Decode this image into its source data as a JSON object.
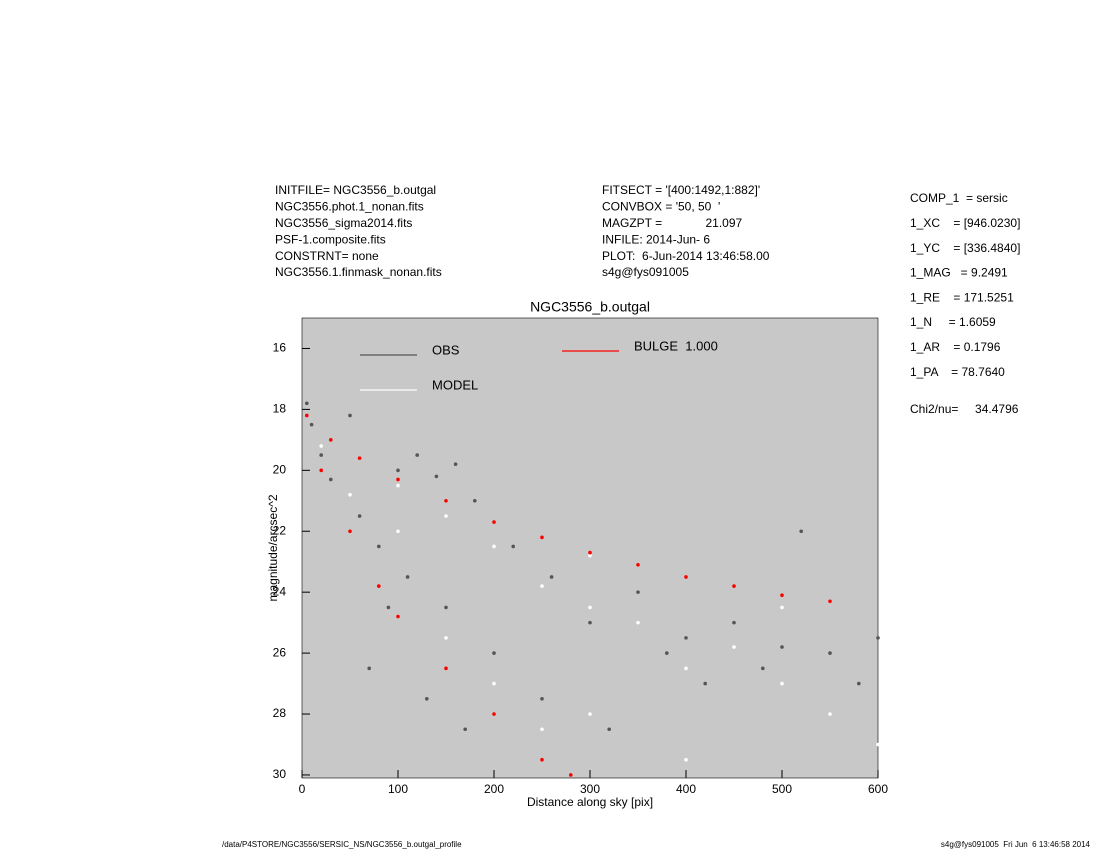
{
  "header": {
    "left": [
      "INITFILE= NGC3556_b.outgal",
      "NGC3556.phot.1_nonan.fits",
      "NGC3556_sigma2014.fits",
      "PSF-1.composite.fits",
      "CONSTRNT= none",
      "NGC3556.1.finmask_nonan.fits"
    ],
    "middle": [
      "FITSECT = '[400:1492,1:882]'",
      "CONVBOX = '50, 50  '",
      "MAGZPT =             21.097",
      "INFILE: 2014-Jun- 6",
      "PLOT:  6-Jun-2014 13:46:58.00",
      "s4g@fys091005"
    ],
    "right": [
      "COMP_1  = sersic",
      "1_XC    = [946.0230]",
      "1_YC    = [336.4840]",
      "1_MAG   = 9.2491",
      "1_RE    = 171.5251",
      "1_N     = 1.6059",
      "1_AR    = 0.1796",
      "1_PA    = 78.7640"
    ],
    "chi2": "Chi2/nu=     34.4796"
  },
  "footer": {
    "left": "/data/P4STORE/NGC3556/SERSIC_NS/NGC3556_b.outgal_profile",
    "right": "s4g@fys091005  Fri Jun  6 13:46:58 2014"
  },
  "chart_data": {
    "type": "scatter",
    "title": "NGC3556_b.outgal",
    "x_label": "Distance along sky [pix]",
    "y_label": "magnitude/arcsec^2",
    "xlim": [
      0,
      600
    ],
    "ylim": [
      30.1,
      15
    ],
    "xticks": [
      0,
      100,
      200,
      300,
      400,
      500,
      600
    ],
    "yticks": [
      16,
      18,
      20,
      22,
      24,
      26,
      28,
      30
    ],
    "series": [
      {
        "name": "OBS",
        "color": "#555555",
        "x": [
          5,
          10,
          20,
          30,
          50,
          60,
          80,
          100,
          110,
          120,
          140,
          150,
          160,
          180,
          200,
          220,
          250,
          260,
          300,
          320,
          350,
          380,
          400,
          420,
          450,
          480,
          500,
          520,
          550,
          580,
          600,
          130,
          170,
          90,
          70
        ],
        "values": [
          17.8,
          18.5,
          19.5,
          20.3,
          18.2,
          21.5,
          22.5,
          20.0,
          23.5,
          19.5,
          20.2,
          24.5,
          19.8,
          21.0,
          26.0,
          22.5,
          27.5,
          23.5,
          25.0,
          28.5,
          24.0,
          26.0,
          25.5,
          27.0,
          25.0,
          26.5,
          25.8,
          22.0,
          26.0,
          27.0,
          25.5,
          27.5,
          28.5,
          24.5,
          26.5
        ]
      },
      {
        "name": "MODEL",
        "color": "#ffffff",
        "x": [
          20,
          50,
          100,
          150,
          200,
          250,
          300,
          350,
          400,
          450,
          500,
          550,
          600,
          300,
          400,
          150,
          200,
          250,
          100,
          300,
          500
        ],
        "values": [
          19.2,
          20.8,
          22.0,
          21.5,
          22.5,
          23.8,
          24.5,
          25.0,
          26.5,
          25.8,
          27.0,
          28.0,
          29.0,
          28.0,
          29.5,
          25.5,
          27.0,
          28.5,
          20.5,
          22.8,
          24.5
        ]
      },
      {
        "name": "BULGE  1.000",
        "color": "#ff0000",
        "x": [
          5,
          30,
          60,
          100,
          150,
          200,
          250,
          300,
          350,
          400,
          450,
          500,
          550,
          20,
          50,
          80,
          100,
          150,
          200,
          250,
          280
        ],
        "values": [
          18.2,
          19.0,
          19.6,
          20.3,
          21.0,
          21.7,
          22.2,
          22.7,
          23.1,
          23.5,
          23.8,
          24.1,
          24.3,
          20.0,
          22.0,
          23.8,
          24.8,
          26.5,
          28.0,
          29.5,
          30.0
        ]
      }
    ]
  }
}
